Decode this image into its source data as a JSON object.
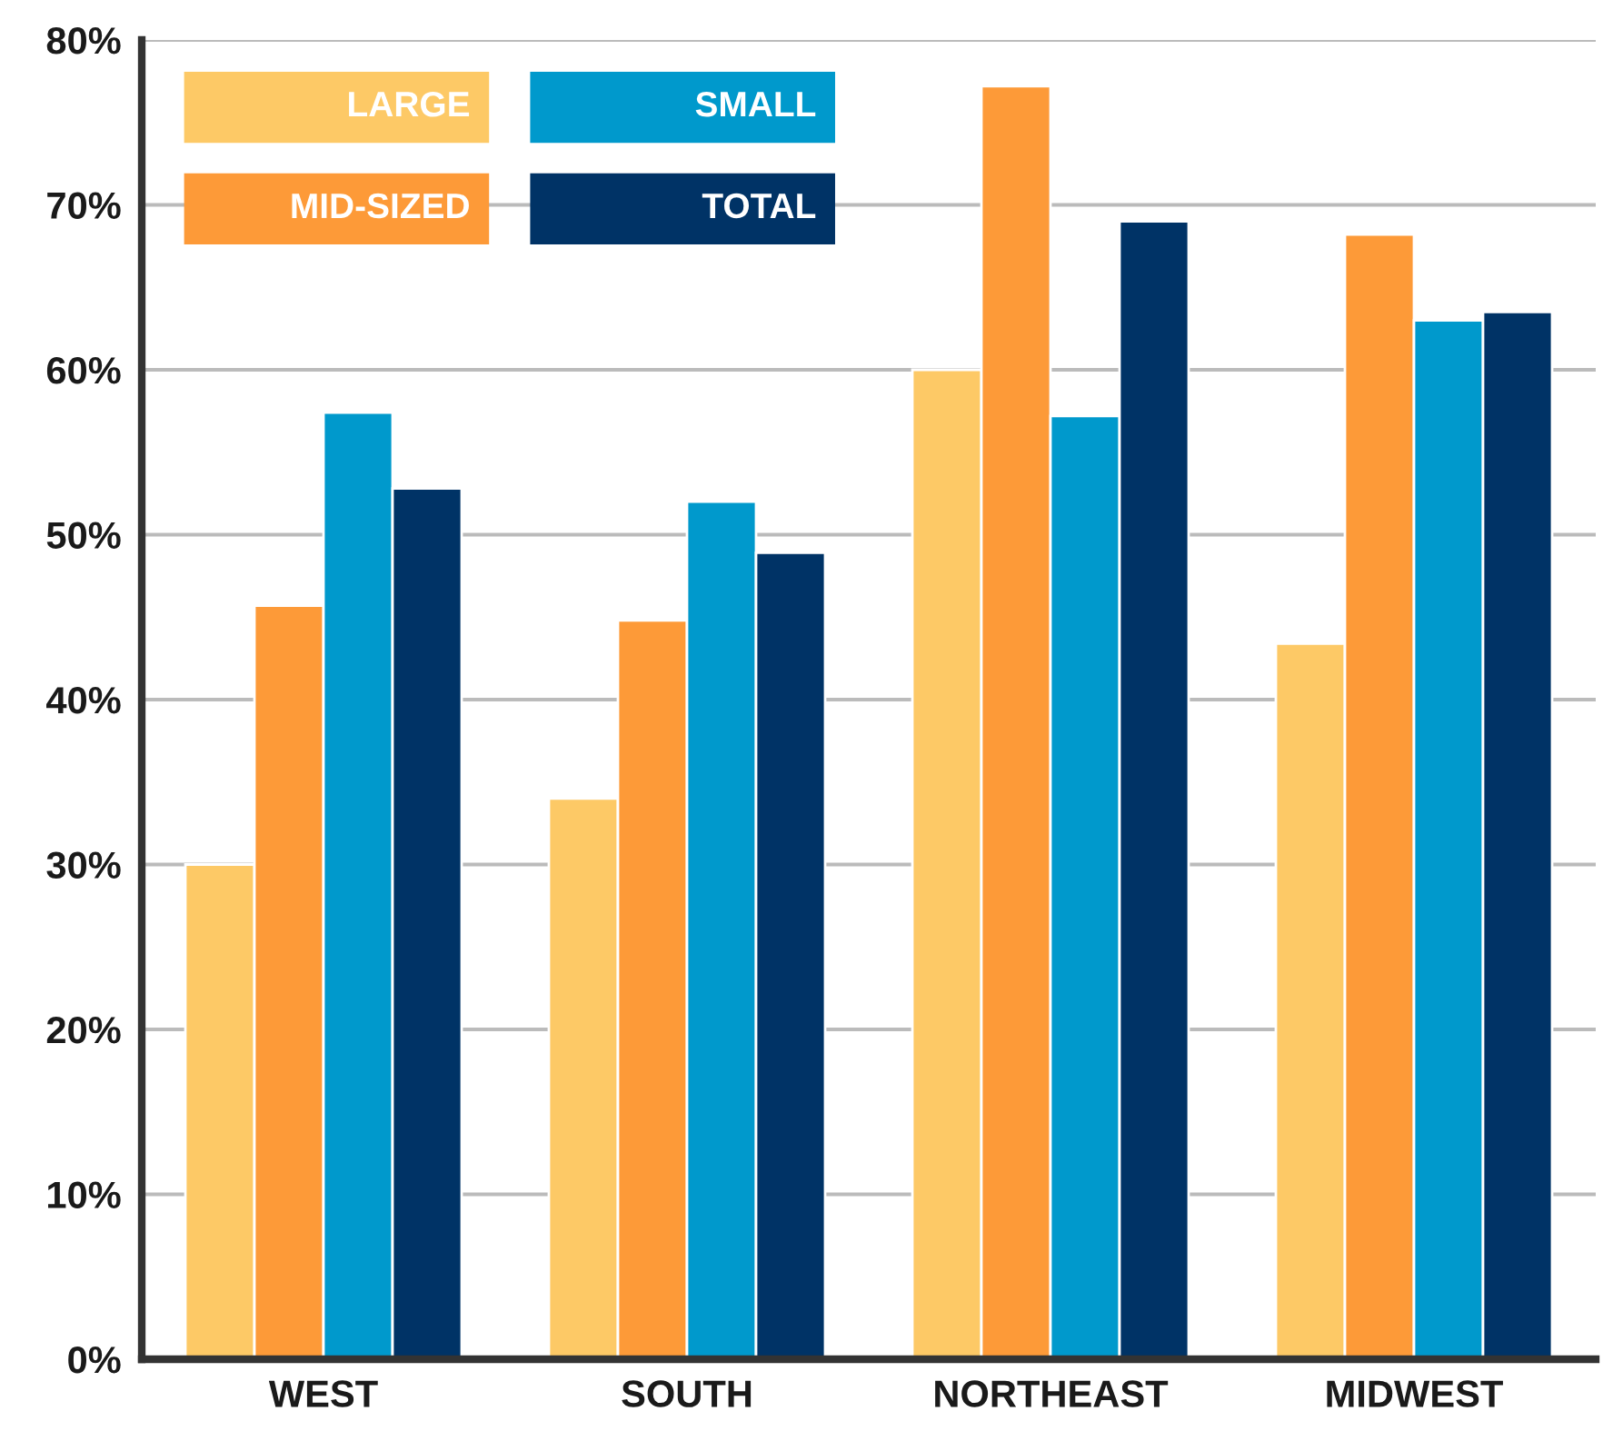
{
  "chart_data": {
    "type": "bar",
    "categories": [
      "WEST",
      "SOUTH",
      "NORTHEAST",
      "MIDWEST"
    ],
    "series": [
      {
        "name": "LARGE",
        "color": "#fdc966",
        "values": [
          30,
          34,
          60,
          43.4
        ]
      },
      {
        "name": "MID-SIZED",
        "color": "#fd9a38",
        "values": [
          45.7,
          44.8,
          77.2,
          68.2
        ]
      },
      {
        "name": "SMALL",
        "color": "#0099cc",
        "values": [
          57.4,
          52.0,
          57.2,
          63.0
        ]
      },
      {
        "name": "TOTAL",
        "color": "#003366",
        "values": [
          52.8,
          48.9,
          69.0,
          63.5
        ]
      }
    ],
    "ylim": [
      0,
      80
    ],
    "yticks": [
      {
        "value": 0,
        "label": "0%"
      },
      {
        "value": 10,
        "label": "10%"
      },
      {
        "value": 20,
        "label": "20%"
      },
      {
        "value": 30,
        "label": "30%"
      },
      {
        "value": 40,
        "label": "40%"
      },
      {
        "value": 50,
        "label": "50%"
      },
      {
        "value": 60,
        "label": "60%"
      },
      {
        "value": 70,
        "label": "70%"
      },
      {
        "value": 80,
        "label": "80%"
      }
    ],
    "grid": "y",
    "legend": "top left"
  }
}
